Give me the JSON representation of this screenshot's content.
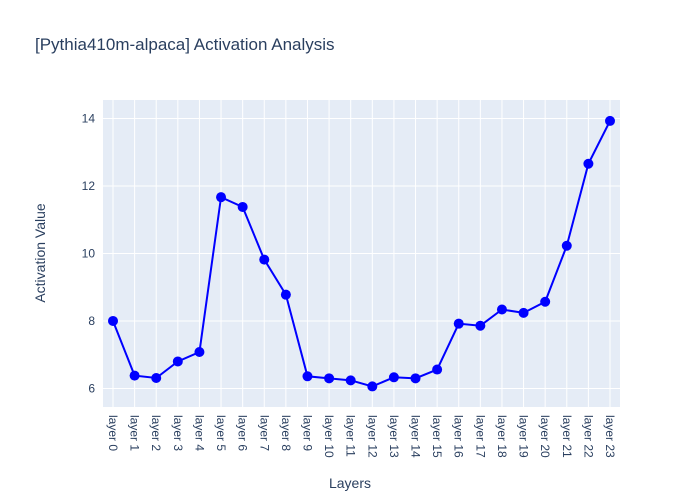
{
  "chart_data": {
    "type": "line",
    "title": "[Pythia410m-alpaca] Activation Analysis",
    "xlabel": "Layers",
    "ylabel": "Activation Value",
    "categories": [
      "layer 0",
      "layer 1",
      "layer 2",
      "layer 3",
      "layer 4",
      "layer 5",
      "layer 6",
      "layer 7",
      "layer 8",
      "layer 9",
      "layer 10",
      "layer 11",
      "layer 12",
      "layer 13",
      "layer 14",
      "layer 15",
      "layer 16",
      "layer 17",
      "layer 18",
      "layer 19",
      "layer 20",
      "layer 21",
      "layer 22",
      "layer 23"
    ],
    "series": [
      {
        "values": [
          8.0,
          6.38,
          6.31,
          6.8,
          7.08,
          11.67,
          11.38,
          9.82,
          8.78,
          6.36,
          6.3,
          6.24,
          6.06,
          6.33,
          6.3,
          6.56,
          7.92,
          7.86,
          8.34,
          8.24,
          8.57,
          10.23,
          12.66,
          13.93
        ],
        "color": "#0000ff"
      }
    ],
    "ylim": [
      5.45,
      14.55
    ],
    "yticks": [
      6,
      8,
      10,
      12,
      14
    ],
    "grid": true,
    "plot_bg": "#e5ecf6",
    "grid_color": "#ffffff"
  }
}
